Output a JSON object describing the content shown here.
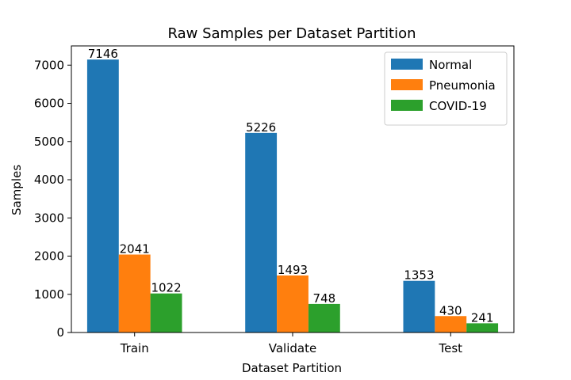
{
  "chart_data": {
    "type": "bar",
    "title": "Raw Samples per Dataset Partition",
    "xlabel": "Dataset Partition",
    "ylabel": "Samples",
    "categories": [
      "Train",
      "Validate",
      "Test"
    ],
    "series": [
      {
        "name": "Normal",
        "values": [
          7146,
          5226,
          1353
        ],
        "color": "#1f77b4"
      },
      {
        "name": "Pneumonia",
        "values": [
          2041,
          1493,
          430
        ],
        "color": "#ff7f0e"
      },
      {
        "name": "COVID-19",
        "values": [
          1022,
          748,
          241
        ],
        "color": "#2ca02c"
      }
    ],
    "ylim": [
      0,
      7503
    ],
    "yticks": [
      0,
      1000,
      2000,
      3000,
      4000,
      5000,
      6000,
      7000
    ],
    "legend_position": "top-right",
    "grid": false
  }
}
